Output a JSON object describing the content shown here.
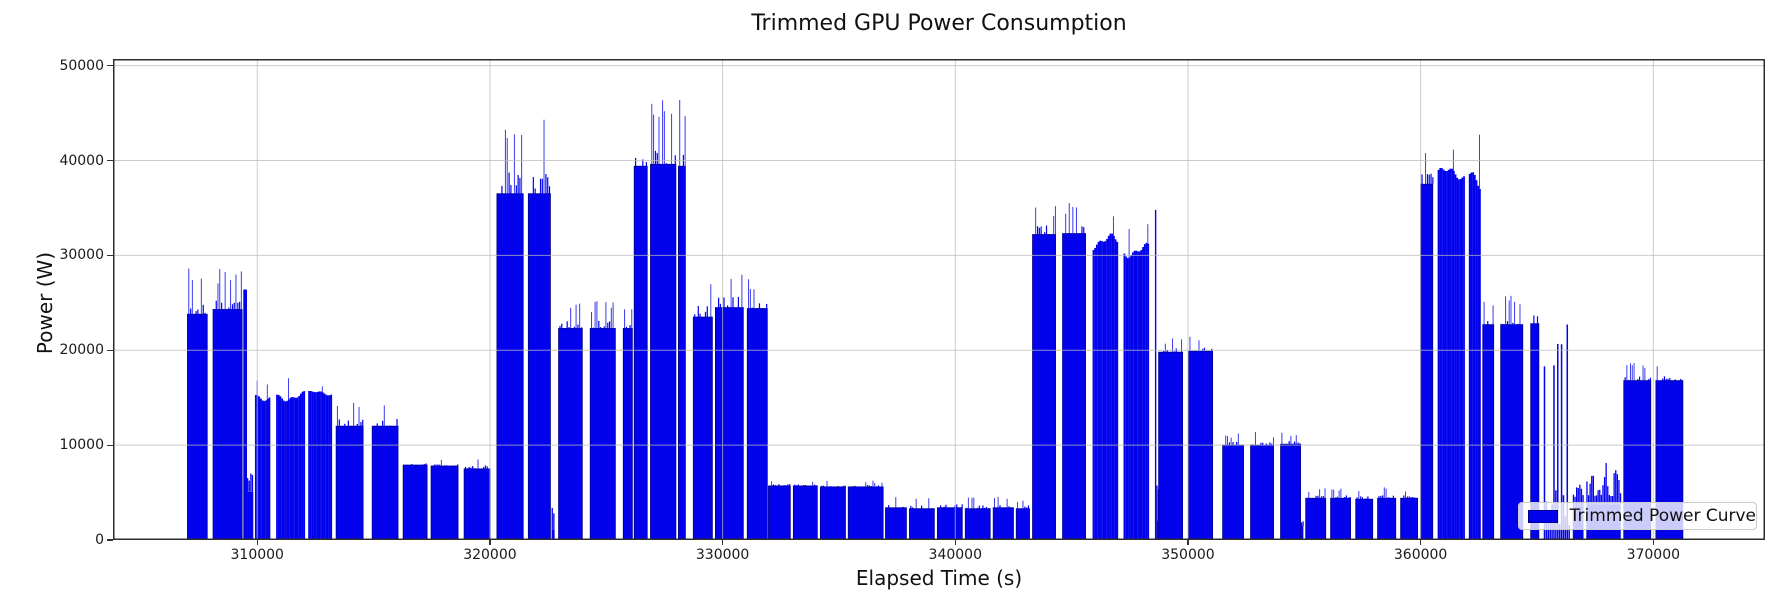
{
  "chart_data": {
    "type": "bar",
    "title": "Trimmed GPU Power Consumption",
    "xlabel": "Elapsed Time (s)",
    "ylabel": "Power (W)",
    "xlim": [
      303800,
      374800
    ],
    "ylim": [
      0,
      50700
    ],
    "xticks": [
      310000,
      320000,
      330000,
      340000,
      350000,
      360000,
      370000
    ],
    "yticks": [
      0,
      10000,
      20000,
      30000,
      40000,
      50000
    ],
    "grid": true,
    "grid_on_top": true,
    "legend": {
      "label": "Trimmed Power Curve",
      "position": "lower right"
    },
    "colors": {
      "bar_fill": "#0202ec",
      "bar_edge": "#000090",
      "spike": "#2a2aee",
      "grid": "#bababa",
      "spine": "#2e2e2e",
      "text": "#111111"
    },
    "segments_format": [
      "t_start_s",
      "t_end_s",
      "base_W",
      "peak_W",
      "texture"
    ],
    "segments": [
      [
        307000,
        307850,
        23800,
        28700,
        "block"
      ],
      [
        308100,
        309350,
        24300,
        28700,
        "block"
      ],
      [
        309400,
        309560,
        26400,
        26400,
        "spike"
      ],
      [
        309560,
        309830,
        6200,
        7200,
        "lowvar"
      ],
      [
        309900,
        310550,
        15000,
        16900,
        "wavy"
      ],
      [
        310810,
        312010,
        15000,
        17100,
        "wavy"
      ],
      [
        312190,
        313210,
        15400,
        16500,
        "wavy"
      ],
      [
        313390,
        314550,
        12000,
        14900,
        "sparse"
      ],
      [
        314940,
        316050,
        12000,
        14900,
        "sparse"
      ],
      [
        316270,
        317300,
        7900,
        8700,
        "block"
      ],
      [
        317470,
        318630,
        7800,
        8600,
        "block"
      ],
      [
        318890,
        320010,
        7500,
        8800,
        "block"
      ],
      [
        320300,
        321430,
        36500,
        45000,
        "block"
      ],
      [
        321650,
        322600,
        36500,
        45200,
        "block"
      ],
      [
        322650,
        322780,
        1300,
        9000,
        "lowvar"
      ],
      [
        322950,
        323970,
        22300,
        25200,
        "block"
      ],
      [
        324310,
        325390,
        22300,
        25300,
        "block"
      ],
      [
        325730,
        326120,
        22300,
        25000,
        "block"
      ],
      [
        326200,
        326760,
        39400,
        46900,
        "block"
      ],
      [
        326900,
        327990,
        39600,
        48200,
        "block"
      ],
      [
        328100,
        328400,
        39400,
        46800,
        "block"
      ],
      [
        328740,
        329560,
        23500,
        28000,
        "block"
      ],
      [
        329690,
        330890,
        24500,
        28500,
        "block"
      ],
      [
        331060,
        331920,
        24400,
        27800,
        "block"
      ],
      [
        331970,
        332910,
        5700,
        6400,
        "block"
      ],
      [
        333040,
        334070,
        5700,
        6400,
        "block"
      ],
      [
        334200,
        335280,
        5600,
        6300,
        "block"
      ],
      [
        335400,
        336900,
        5600,
        6300,
        "block"
      ],
      [
        337000,
        337900,
        3400,
        4700,
        "block"
      ],
      [
        338030,
        339100,
        3300,
        4600,
        "block"
      ],
      [
        339230,
        340300,
        3400,
        4700,
        "block"
      ],
      [
        340430,
        341500,
        3300,
        4600,
        "block"
      ],
      [
        341630,
        342500,
        3400,
        4600,
        "block"
      ],
      [
        342620,
        343190,
        3300,
        4500,
        "block"
      ],
      [
        343320,
        344310,
        32200,
        35600,
        "block"
      ],
      [
        344610,
        345600,
        32300,
        35700,
        "block"
      ],
      [
        345900,
        346970,
        31200,
        34500,
        "wavy"
      ],
      [
        347230,
        348260,
        30300,
        33300,
        "wavy"
      ],
      [
        348580,
        348640,
        34800,
        34800,
        "spike"
      ],
      [
        348640,
        348730,
        2500,
        7000,
        "lowvar"
      ],
      [
        348740,
        349770,
        19800,
        21300,
        "block"
      ],
      [
        350030,
        351060,
        19900,
        21600,
        "block"
      ],
      [
        351490,
        352390,
        10000,
        11300,
        "block"
      ],
      [
        352690,
        353680,
        10000,
        11400,
        "block"
      ],
      [
        353980,
        354840,
        10100,
        11400,
        "block"
      ],
      [
        354850,
        354960,
        1800,
        2400,
        "lowvar"
      ],
      [
        355060,
        355920,
        4400,
        5500,
        "block"
      ],
      [
        356130,
        356990,
        4400,
        5500,
        "block"
      ],
      [
        357210,
        357940,
        4300,
        5400,
        "block"
      ],
      [
        358150,
        358930,
        4400,
        5600,
        "block"
      ],
      [
        359140,
        359870,
        4400,
        5500,
        "block"
      ],
      [
        360000,
        360520,
        37500,
        42400,
        "block"
      ],
      [
        360730,
        361850,
        38400,
        41400,
        "wavy"
      ],
      [
        362070,
        362580,
        37900,
        43000,
        "wavy"
      ],
      [
        362670,
        363140,
        22700,
        25700,
        "block"
      ],
      [
        363440,
        364390,
        22700,
        26000,
        "block"
      ],
      [
        364730,
        365080,
        22800,
        26500,
        "block"
      ],
      [
        365290,
        366370,
        4000,
        26300,
        "choppy"
      ],
      [
        366540,
        367000,
        4300,
        8700,
        "lowvar"
      ],
      [
        367120,
        368600,
        4600,
        8900,
        "lowvar"
      ],
      [
        368730,
        369890,
        16800,
        18900,
        "block"
      ],
      [
        370110,
        371270,
        16800,
        18800,
        "block"
      ]
    ]
  }
}
